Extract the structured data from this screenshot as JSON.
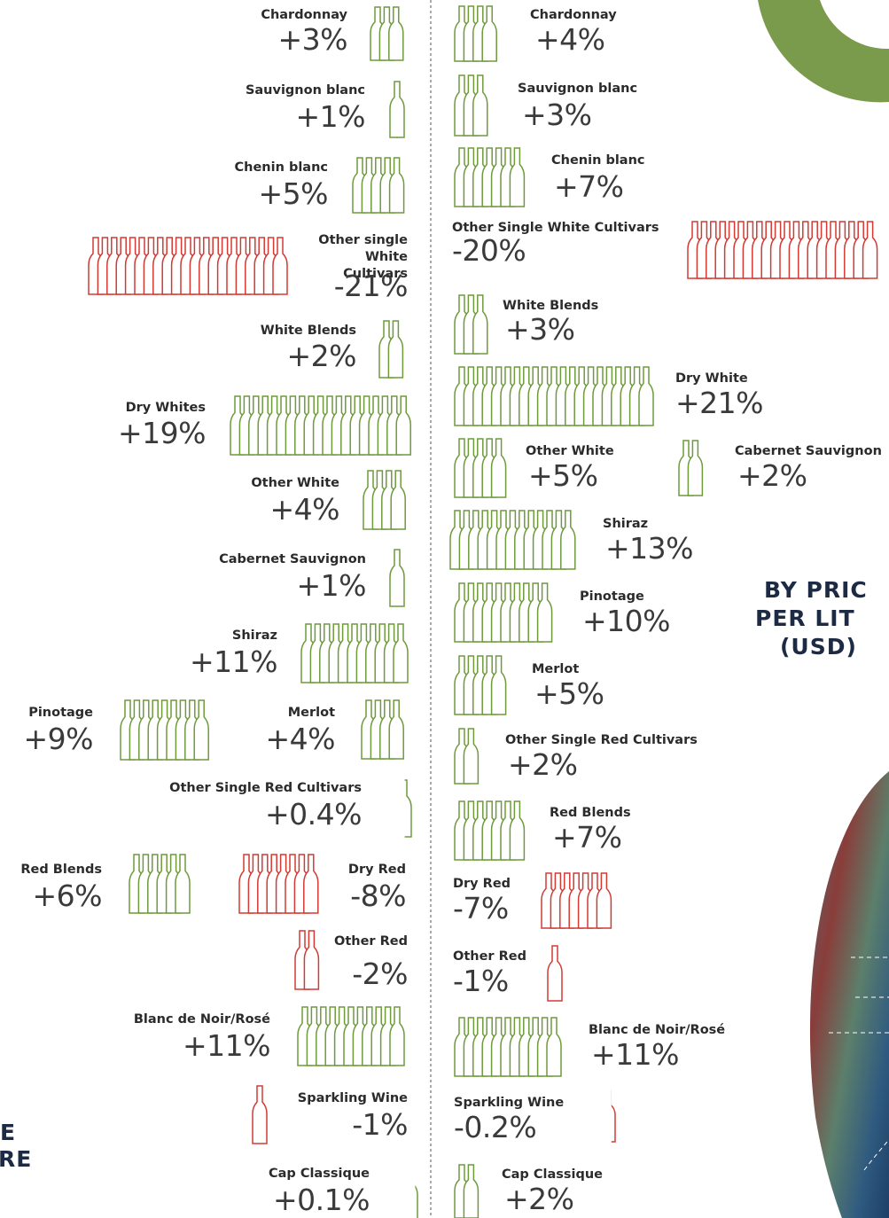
{
  "colors": {
    "positive": "#6e9a3c",
    "negative": "#d23a33"
  },
  "left": [
    {
      "label": "Chardonnay",
      "value": 3,
      "value_label": "+3%"
    },
    {
      "label": "Sauvignon blanc",
      "value": 1,
      "value_label": "+1%"
    },
    {
      "label": "Chenin blanc",
      "value": 5,
      "value_label": "+5%"
    },
    {
      "label": "Other single White Cultivars",
      "value": -21,
      "value_label": "-21%"
    },
    {
      "label": "White Blends",
      "value": 2,
      "value_label": "+2%"
    },
    {
      "label": "Dry Whites",
      "value": 19,
      "value_label": "+19%"
    },
    {
      "label": "Other White",
      "value": 4,
      "value_label": "+4%"
    },
    {
      "label": "Cabernet Sauvignon",
      "value": 1,
      "value_label": "+1%"
    },
    {
      "label": "Shiraz",
      "value": 11,
      "value_label": "+11%"
    },
    {
      "label": "Pinotage",
      "value": 9,
      "value_label": "+9%"
    },
    {
      "label": "Merlot",
      "value": 4,
      "value_label": "+4%"
    },
    {
      "label": "Other Single Red Cultivars",
      "value": 0.4,
      "value_label": "+0.4%"
    },
    {
      "label": "Red Blends",
      "value": 6,
      "value_label": "+6%"
    },
    {
      "label": "Dry Red",
      "value": -8,
      "value_label": "-8%"
    },
    {
      "label": "Other Red",
      "value": -2,
      "value_label": "-2%"
    },
    {
      "label": "Blanc de Noir/Rosé",
      "value": 11,
      "value_label": "+11%"
    },
    {
      "label": "Sparkling Wine",
      "value": -1,
      "value_label": "-1%"
    },
    {
      "label": "Cap Classique",
      "value": 0.1,
      "value_label": "+0.1%"
    }
  ],
  "right": [
    {
      "label": "Chardonnay",
      "value": 4,
      "value_label": "+4%"
    },
    {
      "label": "Sauvignon blanc",
      "value": 3,
      "value_label": "+3%"
    },
    {
      "label": "Chenin blanc",
      "value": 7,
      "value_label": "+7%"
    },
    {
      "label": "Other Single White Cultivars",
      "value": -20,
      "value_label": "-20%"
    },
    {
      "label": "White Blends",
      "value": 3,
      "value_label": "+3%"
    },
    {
      "label": "Dry White",
      "value": 21,
      "value_label": "+21%"
    },
    {
      "label": "Other White",
      "value": 5,
      "value_label": "+5%"
    },
    {
      "label": "Cabernet Sauvignon",
      "value": 2,
      "value_label": "+2%"
    },
    {
      "label": "Shiraz",
      "value": 13,
      "value_label": "+13%"
    },
    {
      "label": "Pinotage",
      "value": 10,
      "value_label": "+10%"
    },
    {
      "label": "Merlot",
      "value": 5,
      "value_label": "+5%"
    },
    {
      "label": "Other Single Red Cultivars",
      "value": 2,
      "value_label": "+2%"
    },
    {
      "label": "Red Blends",
      "value": 7,
      "value_label": "+7%"
    },
    {
      "label": "Dry Red",
      "value": -7,
      "value_label": "-7%"
    },
    {
      "label": "Other Red",
      "value": -1,
      "value_label": "-1%"
    },
    {
      "label": "Blanc de Noir/Rosé",
      "value": 11,
      "value_label": "+11%"
    },
    {
      "label": "Sparkling Wine",
      "value": -0.2,
      "value_label": "-0.2%"
    },
    {
      "label": "Cap Classique",
      "value": 2,
      "value_label": "+2%"
    }
  ],
  "price_heading": [
    "BY PRIC",
    "PER LIT",
    "(USD)"
  ],
  "cut_heading": [
    "E",
    "RE"
  ]
}
